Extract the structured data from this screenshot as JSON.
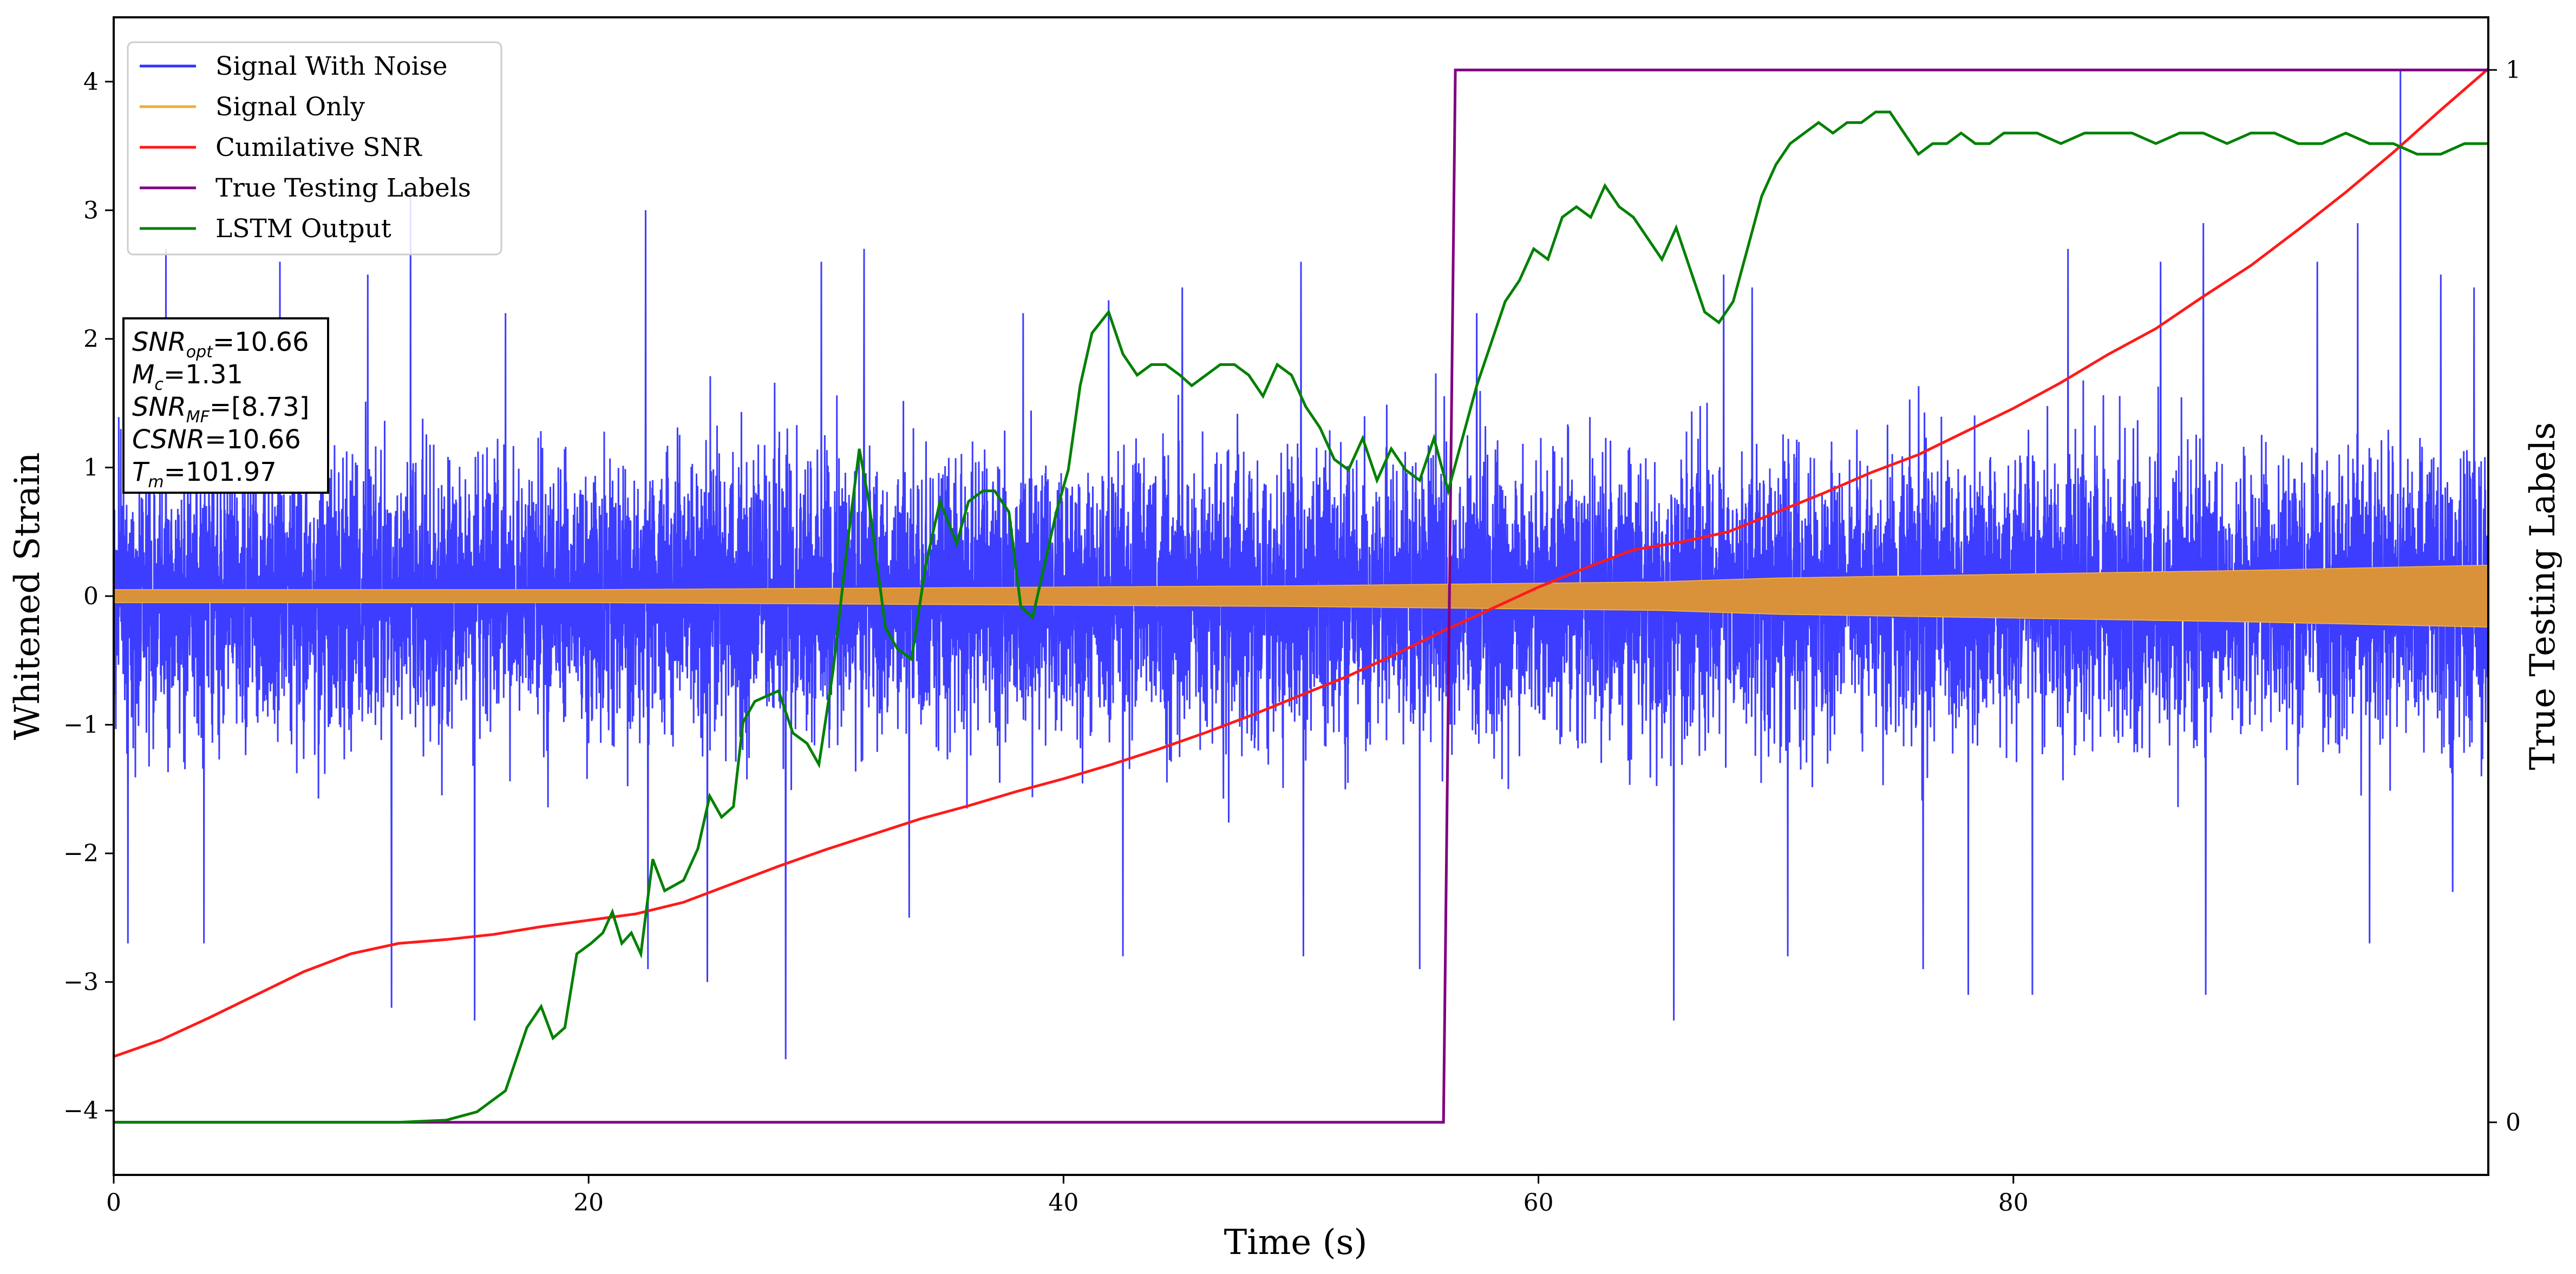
{
  "chart_data": {
    "type": "line",
    "xlabel": "Time (s)",
    "ylabel": "Whitened Strain",
    "y2label": "True Testing Labels",
    "xlim": [
      0,
      100
    ],
    "ylim": [
      -4.5,
      4.5
    ],
    "y2lim": [
      -0.05,
      1.05
    ],
    "x_ticks": [
      0,
      20,
      40,
      60,
      80
    ],
    "y_ticks": [
      -4,
      -3,
      -2,
      -1,
      0,
      1,
      2,
      3,
      4
    ],
    "y2_ticks": [
      0,
      1
    ],
    "grid": false,
    "legend_position": "top-left",
    "colors": {
      "signal_with_noise": "#3333ff",
      "signal_only": "#f0ad3a",
      "signal_only_fill": "#d9913a",
      "cumulative_snr": "#ff1a1a",
      "true_labels": "#800080",
      "lstm_output": "#008000"
    },
    "series": [
      {
        "name": "Signal With Noise",
        "axis": "left",
        "note": "dense noisy strain trace",
        "typical_band": [
          -1.0,
          1.0
        ],
        "positive_peaks": [
          [
            0.3,
            1.3
          ],
          [
            2.2,
            2.7
          ],
          [
            7.0,
            2.6
          ],
          [
            10.7,
            2.5
          ],
          [
            12.5,
            3.1
          ],
          [
            16.5,
            2.2
          ],
          [
            22.4,
            3.0
          ],
          [
            29.8,
            2.6
          ],
          [
            31.6,
            2.7
          ],
          [
            38.3,
            2.2
          ],
          [
            41.9,
            2.3
          ],
          [
            45.0,
            2.4
          ],
          [
            50.0,
            2.6
          ],
          [
            57.4,
            2.2
          ],
          [
            67.8,
            2.5
          ],
          [
            69.0,
            2.4
          ],
          [
            82.3,
            2.7
          ],
          [
            86.2,
            2.6
          ],
          [
            88.0,
            2.9
          ],
          [
            92.8,
            2.6
          ],
          [
            94.5,
            2.9
          ],
          [
            96.3,
            4.1
          ],
          [
            98.0,
            2.5
          ],
          [
            99.4,
            2.4
          ]
        ],
        "negative_peaks": [
          [
            0.6,
            -2.7
          ],
          [
            3.8,
            -2.7
          ],
          [
            11.7,
            -3.2
          ],
          [
            15.2,
            -3.3
          ],
          [
            22.5,
            -2.9
          ],
          [
            25.0,
            -3.0
          ],
          [
            28.3,
            -3.6
          ],
          [
            33.5,
            -2.5
          ],
          [
            42.5,
            -2.8
          ],
          [
            50.1,
            -2.8
          ],
          [
            55.0,
            -2.9
          ],
          [
            65.7,
            -3.3
          ],
          [
            70.5,
            -2.8
          ],
          [
            76.2,
            -2.9
          ],
          [
            78.1,
            -3.1
          ],
          [
            80.8,
            -3.1
          ],
          [
            88.1,
            -3.1
          ],
          [
            95.0,
            -2.7
          ],
          [
            98.5,
            -2.3
          ]
        ]
      },
      {
        "name": "Signal Only",
        "axis": "left",
        "note": "chirp envelope half-amplitude",
        "x": [
          0,
          10,
          20,
          30,
          40,
          50,
          60,
          65,
          70,
          80,
          90,
          100
        ],
        "amplitude": [
          0.05,
          0.05,
          0.05,
          0.06,
          0.07,
          0.08,
          0.1,
          0.11,
          0.14,
          0.17,
          0.2,
          0.24
        ]
      },
      {
        "name": "Cumilative SNR",
        "axis": "left",
        "x": [
          0,
          2,
          4,
          6,
          8,
          10,
          12,
          14,
          16,
          18,
          20,
          22,
          24,
          26,
          28,
          30,
          32,
          34,
          36,
          38,
          40,
          42,
          44,
          46,
          48,
          50,
          52,
          54,
          56,
          58,
          60,
          62,
          64,
          66,
          68,
          70,
          72,
          74,
          76,
          78,
          80,
          82,
          84,
          86,
          88,
          90,
          92,
          94,
          96,
          98,
          100
        ],
        "values": [
          -3.58,
          -3.45,
          -3.28,
          -3.1,
          -2.92,
          -2.78,
          -2.7,
          -2.67,
          -2.63,
          -2.57,
          -2.52,
          -2.47,
          -2.38,
          -2.24,
          -2.1,
          -1.97,
          -1.85,
          -1.73,
          -1.63,
          -1.52,
          -1.42,
          -1.31,
          -1.19,
          -1.06,
          -0.92,
          -0.77,
          -0.62,
          -0.45,
          -0.27,
          -0.1,
          0.07,
          0.22,
          0.36,
          0.42,
          0.5,
          0.65,
          0.8,
          0.96,
          1.1,
          1.28,
          1.46,
          1.66,
          1.88,
          2.08,
          2.33,
          2.57,
          2.85,
          3.14,
          3.45,
          3.78,
          4.1
        ]
      },
      {
        "name": "True Testing Labels",
        "axis": "right",
        "x": [
          0,
          56.0,
          56.5,
          100
        ],
        "values": [
          0,
          0,
          1,
          1
        ]
      },
      {
        "name": "LSTM Output",
        "axis": "right",
        "x": [
          0,
          12,
          14,
          15.3,
          16.5,
          17.4,
          18.0,
          18.5,
          19.0,
          19.5,
          20.1,
          20.6,
          21.0,
          21.4,
          21.8,
          22.2,
          22.7,
          23.2,
          24.0,
          24.6,
          25.1,
          25.6,
          26.1,
          26.5,
          27.0,
          28.0,
          28.6,
          29.2,
          29.7,
          30.3,
          30.9,
          31.4,
          31.8,
          32.5,
          33.0,
          33.6,
          34.2,
          34.8,
          35.5,
          36.0,
          36.6,
          37.1,
          37.7,
          38.2,
          38.7,
          39.2,
          39.7,
          40.2,
          40.7,
          41.2,
          41.9,
          42.5,
          43.1,
          43.7,
          44.3,
          44.9,
          45.4,
          46.0,
          46.6,
          47.2,
          47.8,
          48.4,
          49.0,
          49.6,
          50.2,
          50.8,
          51.4,
          52.0,
          52.6,
          53.2,
          53.8,
          54.4,
          55.0,
          55.6,
          56.2,
          56.8,
          57.4,
          58.0,
          58.6,
          59.2,
          59.8,
          60.4,
          61.0,
          61.6,
          62.2,
          62.8,
          63.4,
          64.0,
          64.6,
          65.2,
          65.8,
          66.4,
          67.0,
          67.6,
          68.2,
          68.8,
          69.4,
          70.0,
          70.6,
          71.2,
          71.8,
          72.4,
          73.0,
          73.6,
          74.2,
          74.8,
          75.4,
          76.0,
          76.6,
          77.2,
          77.8,
          78.4,
          79.0,
          79.6,
          80.2,
          81.0,
          82.0,
          83.0,
          84.0,
          85.0,
          86.0,
          87.0,
          88.0,
          89.0,
          90.0,
          91.0,
          92.0,
          93.0,
          94.0,
          95.0,
          96.0,
          97.0,
          98.0,
          99.0,
          100.0
        ],
        "values": [
          0.0,
          0.0,
          0.002,
          0.01,
          0.03,
          0.09,
          0.11,
          0.08,
          0.09,
          0.16,
          0.17,
          0.18,
          0.2,
          0.17,
          0.18,
          0.16,
          0.25,
          0.22,
          0.23,
          0.26,
          0.31,
          0.29,
          0.3,
          0.38,
          0.4,
          0.41,
          0.37,
          0.36,
          0.34,
          0.43,
          0.55,
          0.64,
          0.59,
          0.47,
          0.45,
          0.44,
          0.53,
          0.59,
          0.55,
          0.59,
          0.6,
          0.6,
          0.58,
          0.49,
          0.48,
          0.53,
          0.58,
          0.62,
          0.7,
          0.75,
          0.77,
          0.73,
          0.71,
          0.72,
          0.72,
          0.71,
          0.7,
          0.71,
          0.72,
          0.72,
          0.71,
          0.69,
          0.72,
          0.71,
          0.68,
          0.66,
          0.63,
          0.62,
          0.65,
          0.61,
          0.64,
          0.62,
          0.61,
          0.65,
          0.6,
          0.65,
          0.7,
          0.74,
          0.78,
          0.8,
          0.83,
          0.82,
          0.86,
          0.87,
          0.86,
          0.89,
          0.87,
          0.86,
          0.84,
          0.82,
          0.85,
          0.81,
          0.77,
          0.76,
          0.78,
          0.83,
          0.88,
          0.91,
          0.93,
          0.94,
          0.95,
          0.94,
          0.95,
          0.95,
          0.96,
          0.96,
          0.94,
          0.92,
          0.93,
          0.93,
          0.94,
          0.93,
          0.93,
          0.94,
          0.94,
          0.94,
          0.93,
          0.94,
          0.94,
          0.94,
          0.93,
          0.94,
          0.94,
          0.93,
          0.94,
          0.94,
          0.93,
          0.93,
          0.94,
          0.93,
          0.93,
          0.92,
          0.92,
          0.93,
          0.93
        ]
      }
    ],
    "annotation": {
      "snr_opt": "=10.66",
      "mc": "=1.31",
      "snr_mf": "=[8.73]",
      "csnr": "=10.66",
      "tm": "=101.97"
    }
  }
}
